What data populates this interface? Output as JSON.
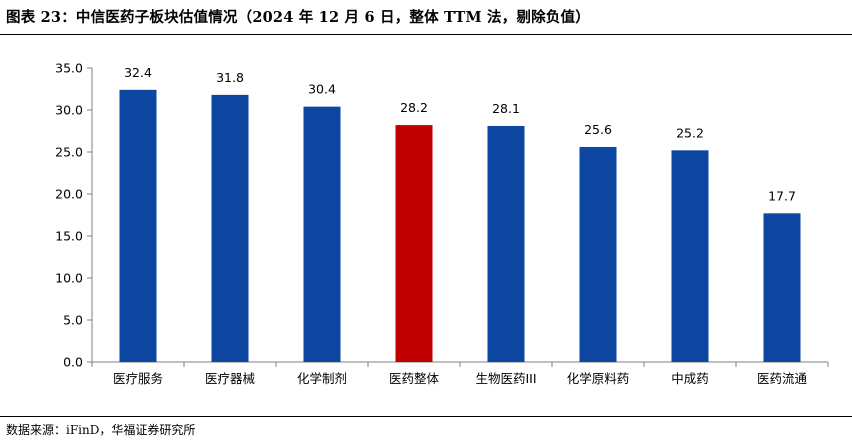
{
  "title": "图表 23：中信医药子板块估值情况（2024 年 12 月 6 日，整体 TTM 法，剔除负值）",
  "source": "数据来源：iFinD，华福证券研究所",
  "colors": {
    "bar": "#0d47a1",
    "highlight": "#c00000",
    "axis": "#808080"
  },
  "chart_data": {
    "type": "bar",
    "title": "",
    "xlabel": "",
    "ylabel": "",
    "categories": [
      "医疗服务",
      "医疗器械",
      "化学制剂",
      "医药整体",
      "生物医药III",
      "化学原料药",
      "中成药",
      "医药流通"
    ],
    "values": [
      32.4,
      31.8,
      30.4,
      28.2,
      28.1,
      25.6,
      25.2,
      17.7
    ],
    "value_labels": [
      "32.4",
      "31.8",
      "30.4",
      "28.2",
      "28.1",
      "25.6",
      "25.2",
      "17.7"
    ],
    "highlight_category": "医药整体",
    "ylim": [
      0,
      35
    ],
    "yticks": [
      "0.0",
      "5.0",
      "10.0",
      "15.0",
      "20.0",
      "25.0",
      "30.0",
      "35.0"
    ],
    "grid": false,
    "legend": "none"
  }
}
